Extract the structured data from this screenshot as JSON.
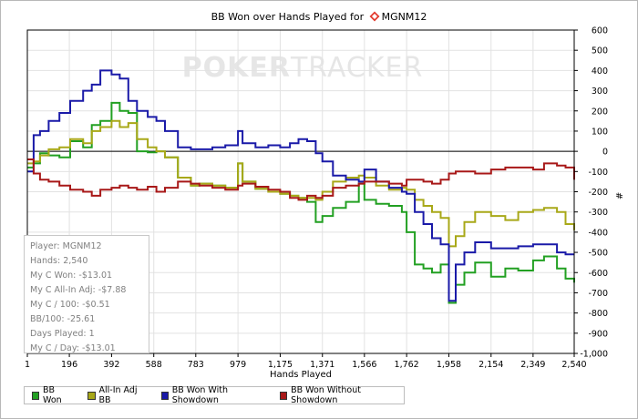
{
  "title_prefix": "BB Won over Hands Played for",
  "player_name": "MGNM12",
  "watermark": {
    "part1": "POKER",
    "part2": "TRACKER"
  },
  "stats": [
    {
      "label": "Player:",
      "value": "MGNM12"
    },
    {
      "label": "Hands:",
      "value": "2,540"
    },
    {
      "label": "My C Won:",
      "value": "-$13.01"
    },
    {
      "label": "My C All-In Adj:",
      "value": "-$7.88"
    },
    {
      "label": "My C / 100:",
      "value": "-$0.51"
    },
    {
      "label": "BB/100:",
      "value": "-25.61"
    },
    {
      "label": "Days Played:",
      "value": "1"
    },
    {
      "label": "My C / Day:",
      "value": "-$13.01"
    }
  ],
  "chart_data": {
    "type": "line",
    "xlabel": "Hands Played",
    "ylabel": "#",
    "xlim": [
      1,
      2540
    ],
    "ylim": [
      -1000,
      600
    ],
    "x_ticks": [
      1,
      196,
      392,
      588,
      783,
      979,
      1175,
      1371,
      1566,
      1762,
      1958,
      2154,
      2349,
      2540
    ],
    "x_tick_labels": [
      "1",
      "196",
      "392",
      "588",
      "783",
      "979",
      "1,175",
      "1,371",
      "1,566",
      "1,762",
      "1,958",
      "2,154",
      "2,349",
      "2,540"
    ],
    "y_ticks": [
      600,
      500,
      400,
      300,
      200,
      100,
      0,
      -100,
      -200,
      -300,
      -400,
      -500,
      -600,
      -700,
      -800,
      -900,
      -1000
    ],
    "y_tick_labels": [
      "600",
      "500",
      "400",
      "300",
      "200",
      "100",
      "0",
      "-100",
      "-200",
      "-300",
      "-400",
      "-500",
      "-600",
      "-700",
      "-800",
      "-900",
      "-1,000"
    ],
    "grid": true,
    "legend_position": "bottom",
    "series": [
      {
        "name": "BB Won",
        "color": "#22a022",
        "x": [
          1,
          30,
          60,
          100,
          150,
          200,
          260,
          300,
          340,
          392,
          430,
          470,
          510,
          560,
          600,
          640,
          700,
          760,
          800,
          860,
          920,
          979,
          1000,
          1060,
          1120,
          1175,
          1220,
          1260,
          1300,
          1340,
          1371,
          1420,
          1480,
          1540,
          1566,
          1620,
          1680,
          1740,
          1762,
          1800,
          1840,
          1880,
          1920,
          1958,
          1990,
          2030,
          2080,
          2154,
          2220,
          2280,
          2349,
          2400,
          2460,
          2500,
          2540
        ],
        "y": [
          -80,
          -60,
          -10,
          -20,
          -30,
          50,
          20,
          130,
          150,
          240,
          200,
          190,
          0,
          -5,
          0,
          -30,
          -130,
          -170,
          -160,
          -170,
          -180,
          -60,
          -150,
          -185,
          -200,
          -210,
          -220,
          -230,
          -250,
          -350,
          -320,
          -280,
          -250,
          -160,
          -240,
          -260,
          -270,
          -300,
          -400,
          -560,
          -580,
          -600,
          -560,
          -750,
          -660,
          -600,
          -550,
          -620,
          -580,
          -590,
          -540,
          -520,
          -580,
          -630,
          -650
        ]
      },
      {
        "name": "All-In Adj BB",
        "color": "#a8a818",
        "x": [
          1,
          30,
          60,
          100,
          150,
          200,
          260,
          300,
          340,
          392,
          430,
          470,
          510,
          560,
          600,
          640,
          700,
          760,
          800,
          860,
          920,
          979,
          1000,
          1060,
          1120,
          1175,
          1220,
          1260,
          1300,
          1340,
          1371,
          1420,
          1480,
          1540,
          1566,
          1620,
          1680,
          1740,
          1762,
          1800,
          1840,
          1880,
          1920,
          1958,
          1990,
          2030,
          2080,
          2154,
          2220,
          2280,
          2349,
          2400,
          2460,
          2500,
          2540
        ],
        "y": [
          -60,
          -50,
          -20,
          10,
          20,
          60,
          40,
          100,
          120,
          150,
          120,
          140,
          60,
          20,
          0,
          -30,
          -130,
          -170,
          -160,
          -170,
          -180,
          -60,
          -150,
          -185,
          -200,
          -210,
          -220,
          -230,
          -230,
          -240,
          -200,
          -150,
          -130,
          -120,
          -130,
          -170,
          -190,
          -180,
          -190,
          -240,
          -270,
          -300,
          -330,
          -470,
          -420,
          -350,
          -300,
          -320,
          -340,
          -300,
          -290,
          -280,
          -300,
          -360,
          -390
        ]
      },
      {
        "name": "BB Won With Showdown",
        "color": "#1a1aa8",
        "x": [
          1,
          30,
          60,
          100,
          150,
          200,
          260,
          300,
          340,
          392,
          430,
          470,
          510,
          560,
          600,
          640,
          700,
          760,
          800,
          860,
          920,
          979,
          1000,
          1060,
          1120,
          1175,
          1220,
          1260,
          1300,
          1340,
          1371,
          1420,
          1480,
          1540,
          1566,
          1620,
          1680,
          1740,
          1762,
          1800,
          1840,
          1880,
          1920,
          1958,
          1990,
          2030,
          2080,
          2154,
          2220,
          2280,
          2349,
          2400,
          2460,
          2500,
          2540
        ],
        "y": [
          -100,
          80,
          100,
          150,
          190,
          250,
          300,
          330,
          400,
          380,
          360,
          250,
          200,
          170,
          150,
          100,
          20,
          10,
          10,
          20,
          30,
          100,
          40,
          20,
          30,
          20,
          40,
          60,
          50,
          -10,
          -50,
          -120,
          -140,
          -150,
          -90,
          -150,
          -180,
          -200,
          -210,
          -300,
          -360,
          -430,
          -460,
          -740,
          -560,
          -500,
          -450,
          -480,
          -480,
          -470,
          -460,
          -460,
          -500,
          -510,
          -510
        ]
      },
      {
        "name": "BB Won Without Showdown",
        "color": "#a81818",
        "x": [
          1,
          30,
          60,
          100,
          150,
          200,
          260,
          300,
          340,
          392,
          430,
          470,
          510,
          560,
          600,
          640,
          700,
          760,
          800,
          860,
          920,
          979,
          1000,
          1060,
          1120,
          1175,
          1220,
          1260,
          1300,
          1340,
          1371,
          1420,
          1480,
          1540,
          1566,
          1620,
          1680,
          1740,
          1762,
          1800,
          1840,
          1880,
          1920,
          1958,
          1990,
          2030,
          2080,
          2154,
          2220,
          2280,
          2349,
          2400,
          2460,
          2500,
          2540
        ],
        "y": [
          -40,
          -110,
          -140,
          -150,
          -170,
          -190,
          -200,
          -220,
          -190,
          -180,
          -170,
          -180,
          -190,
          -175,
          -200,
          -180,
          -150,
          -160,
          -170,
          -180,
          -190,
          -170,
          -160,
          -175,
          -190,
          -200,
          -230,
          -240,
          -220,
          -230,
          -220,
          -180,
          -170,
          -160,
          -150,
          -150,
          -160,
          -170,
          -140,
          -140,
          -150,
          -160,
          -140,
          -110,
          -100,
          -100,
          -110,
          -90,
          -80,
          -80,
          -90,
          -60,
          -70,
          -80,
          -140
        ]
      }
    ]
  }
}
